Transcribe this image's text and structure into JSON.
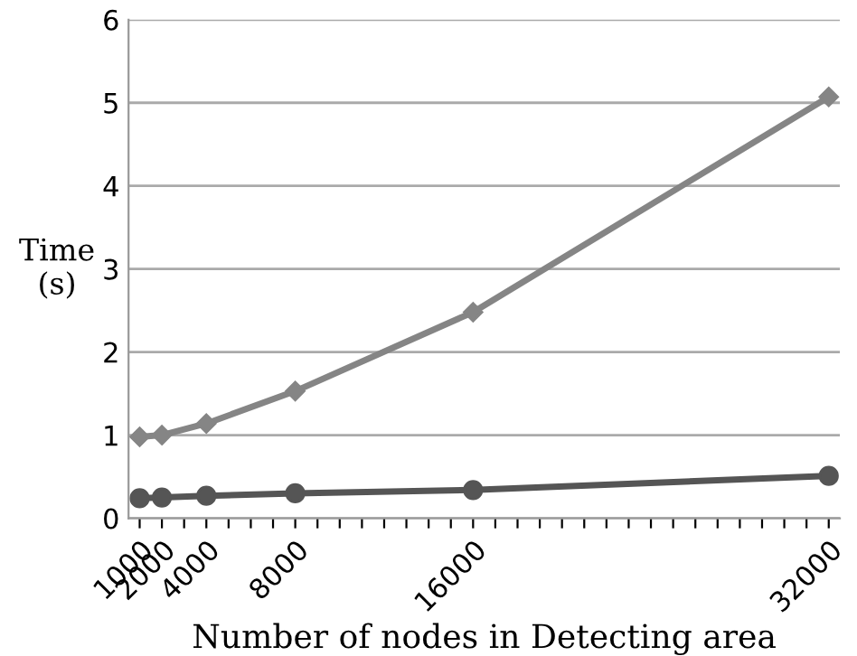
{
  "chart_data": {
    "type": "line",
    "xlabel": "Number of nodes in Detecting area",
    "ylabel": "Time\n(s)",
    "x": [
      1000,
      2000,
      4000,
      8000,
      16000,
      32000
    ],
    "series": [
      {
        "color": "#858585",
        "marker": "diamond",
        "values": [
          0.98,
          1.0,
          1.14,
          1.53,
          2.48,
          5.07
        ]
      },
      {
        "color": "#555555",
        "marker": "circle",
        "values": [
          0.24,
          0.25,
          0.27,
          0.3,
          0.34,
          0.51
        ]
      }
    ],
    "xlim": [
      500,
      32500
    ],
    "xticks": [
      1000,
      2000,
      {
        "value": 3000,
        "label": null
      },
      4000,
      {
        "value": 5000,
        "label": null
      },
      {
        "value": 6000,
        "label": null
      },
      {
        "value": 7000,
        "label": null
      },
      8000,
      {
        "value": 9000,
        "label": null
      },
      {
        "value": 10000,
        "label": null
      },
      {
        "value": 11000,
        "label": null
      },
      {
        "value": 12000,
        "label": null
      },
      {
        "value": 13000,
        "label": null
      },
      {
        "value": 14000,
        "label": null
      },
      {
        "value": 15000,
        "label": null
      },
      16000,
      {
        "value": 17000,
        "label": null
      },
      {
        "value": 18000,
        "label": null
      },
      {
        "value": 19000,
        "label": null
      },
      {
        "value": 20000,
        "label": null
      },
      {
        "value": 21000,
        "label": null
      },
      {
        "value": 22000,
        "label": null
      },
      {
        "value": 23000,
        "label": null
      },
      {
        "value": 24000,
        "label": null
      },
      {
        "value": 25000,
        "label": null
      },
      {
        "value": 26000,
        "label": null
      },
      {
        "value": 27000,
        "label": null
      },
      {
        "value": 28000,
        "label": null
      },
      {
        "value": 29000,
        "label": null
      },
      {
        "value": 30000,
        "label": null
      },
      {
        "value": 31000,
        "label": null
      },
      32000
    ],
    "ylim": [
      0,
      6
    ],
    "yticks": [
      0,
      1,
      2,
      3,
      4,
      5,
      6
    ],
    "grid": "y",
    "legend": false,
    "line_style": "solid"
  }
}
